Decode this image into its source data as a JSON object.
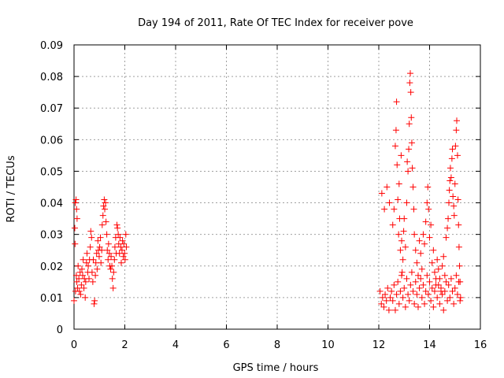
{
  "chart_data": {
    "type": "scatter",
    "title": "Day 194 of 2011, Rate Of TEC Index for receiver pove",
    "xlabel": "GPS time / hours",
    "ylabel": "ROTI / TECUs",
    "xlim": [
      0,
      16
    ],
    "ylim": [
      0,
      0.09
    ],
    "xticks": [
      0,
      2,
      4,
      6,
      8,
      10,
      12,
      14,
      16
    ],
    "yticks": [
      0,
      0.01,
      0.02,
      0.03,
      0.04,
      0.05,
      0.06,
      0.07,
      0.08,
      0.09
    ],
    "xtick_labels": [
      "0",
      "2",
      "4",
      "6",
      "8",
      "10",
      "12",
      "14",
      "16"
    ],
    "ytick_labels": [
      "0",
      "0.01",
      "0.02",
      "0.03",
      "0.04",
      "0.05",
      "0.06",
      "0.07",
      "0.08",
      "0.09"
    ],
    "grid": true,
    "marker": "+",
    "color": "#ff0000",
    "series": [
      {
        "name": "ROTI",
        "points": [
          [
            0.0,
            0.009
          ],
          [
            0.03,
            0.032
          ],
          [
            0.05,
            0.04
          ],
          [
            0.08,
            0.041
          ],
          [
            0.1,
            0.038
          ],
          [
            0.12,
            0.035
          ],
          [
            0.04,
            0.027
          ],
          [
            0.06,
            0.012
          ],
          [
            0.09,
            0.017
          ],
          [
            0.11,
            0.015
          ],
          [
            0.14,
            0.013
          ],
          [
            0.16,
            0.02
          ],
          [
            0.19,
            0.016
          ],
          [
            0.21,
            0.012
          ],
          [
            0.24,
            0.018
          ],
          [
            0.26,
            0.011
          ],
          [
            0.29,
            0.014
          ],
          [
            0.31,
            0.019
          ],
          [
            0.34,
            0.017
          ],
          [
            0.36,
            0.022
          ],
          [
            0.39,
            0.013
          ],
          [
            0.41,
            0.016
          ],
          [
            0.44,
            0.01
          ],
          [
            0.46,
            0.015
          ],
          [
            0.49,
            0.021
          ],
          [
            0.51,
            0.024
          ],
          [
            0.54,
            0.018
          ],
          [
            0.56,
            0.02
          ],
          [
            0.59,
            0.016
          ],
          [
            0.61,
            0.022
          ],
          [
            0.64,
            0.026
          ],
          [
            0.66,
            0.031
          ],
          [
            0.69,
            0.029
          ],
          [
            0.71,
            0.018
          ],
          [
            0.74,
            0.015
          ],
          [
            0.76,
            0.022
          ],
          [
            0.79,
            0.008
          ],
          [
            0.81,
            0.009
          ],
          [
            0.84,
            0.017
          ],
          [
            0.86,
            0.021
          ],
          [
            0.89,
            0.024
          ],
          [
            0.91,
            0.019
          ],
          [
            0.94,
            0.028
          ],
          [
            0.96,
            0.025
          ],
          [
            0.99,
            0.023
          ],
          [
            1.01,
            0.026
          ],
          [
            1.04,
            0.029
          ],
          [
            1.06,
            0.021
          ],
          [
            1.09,
            0.025
          ],
          [
            1.11,
            0.033
          ],
          [
            1.14,
            0.036
          ],
          [
            1.16,
            0.039
          ],
          [
            1.19,
            0.041
          ],
          [
            1.21,
            0.038
          ],
          [
            1.24,
            0.04
          ],
          [
            1.26,
            0.034
          ],
          [
            1.29,
            0.03
          ],
          [
            1.31,
            0.025
          ],
          [
            1.34,
            0.022
          ],
          [
            1.36,
            0.027
          ],
          [
            1.39,
            0.024
          ],
          [
            1.41,
            0.02
          ],
          [
            1.44,
            0.019
          ],
          [
            1.46,
            0.023
          ],
          [
            1.49,
            0.02
          ],
          [
            1.51,
            0.016
          ],
          [
            1.54,
            0.013
          ],
          [
            1.56,
            0.018
          ],
          [
            1.59,
            0.022
          ],
          [
            1.61,
            0.026
          ],
          [
            1.64,
            0.029
          ],
          [
            1.66,
            0.024
          ],
          [
            1.69,
            0.033
          ],
          [
            1.71,
            0.032
          ],
          [
            1.74,
            0.03
          ],
          [
            1.76,
            0.027
          ],
          [
            1.79,
            0.024
          ],
          [
            1.81,
            0.029
          ],
          [
            1.84,
            0.026
          ],
          [
            1.86,
            0.021
          ],
          [
            1.89,
            0.025
          ],
          [
            1.91,
            0.028
          ],
          [
            1.94,
            0.023
          ],
          [
            1.96,
            0.027
          ],
          [
            1.99,
            0.024
          ],
          [
            2.01,
            0.022
          ],
          [
            2.04,
            0.03
          ],
          [
            2.06,
            0.026
          ],
          [
            12.05,
            0.012
          ],
          [
            12.1,
            0.008
          ],
          [
            12.15,
            0.01
          ],
          [
            12.2,
            0.007
          ],
          [
            12.25,
            0.011
          ],
          [
            12.3,
            0.009
          ],
          [
            12.35,
            0.013
          ],
          [
            12.4,
            0.006
          ],
          [
            12.45,
            0.01
          ],
          [
            12.5,
            0.012
          ],
          [
            12.12,
            0.043
          ],
          [
            12.22,
            0.038
          ],
          [
            12.32,
            0.045
          ],
          [
            12.42,
            0.04
          ],
          [
            12.55,
            0.033
          ],
          [
            12.6,
            0.038
          ],
          [
            12.65,
            0.058
          ],
          [
            12.68,
            0.063
          ],
          [
            12.7,
            0.072
          ],
          [
            12.72,
            0.052
          ],
          [
            12.75,
            0.041
          ],
          [
            12.78,
            0.03
          ],
          [
            12.8,
            0.046
          ],
          [
            12.82,
            0.035
          ],
          [
            12.85,
            0.025
          ],
          [
            12.88,
            0.055
          ],
          [
            12.9,
            0.028
          ],
          [
            12.92,
            0.018
          ],
          [
            12.95,
            0.022
          ],
          [
            12.98,
            0.031
          ],
          [
            13.0,
            0.035
          ],
          [
            13.05,
            0.026
          ],
          [
            13.1,
            0.04
          ],
          [
            13.12,
            0.053
          ],
          [
            13.15,
            0.05
          ],
          [
            13.18,
            0.057
          ],
          [
            13.2,
            0.065
          ],
          [
            13.22,
            0.078
          ],
          [
            13.24,
            0.081
          ],
          [
            13.26,
            0.075
          ],
          [
            13.28,
            0.067
          ],
          [
            13.3,
            0.059
          ],
          [
            13.32,
            0.051
          ],
          [
            13.35,
            0.045
          ],
          [
            13.38,
            0.038
          ],
          [
            13.4,
            0.03
          ],
          [
            13.45,
            0.025
          ],
          [
            13.5,
            0.021
          ],
          [
            13.55,
            0.017
          ],
          [
            13.6,
            0.028
          ],
          [
            13.65,
            0.024
          ],
          [
            13.7,
            0.019
          ],
          [
            13.75,
            0.03
          ],
          [
            13.8,
            0.027
          ],
          [
            13.85,
            0.034
          ],
          [
            13.9,
            0.04
          ],
          [
            13.93,
            0.045
          ],
          [
            13.96,
            0.038
          ],
          [
            14.0,
            0.029
          ],
          [
            14.05,
            0.033
          ],
          [
            14.1,
            0.021
          ],
          [
            14.15,
            0.025
          ],
          [
            14.2,
            0.018
          ],
          [
            14.25,
            0.014
          ],
          [
            14.3,
            0.022
          ],
          [
            14.35,
            0.019
          ],
          [
            14.4,
            0.016
          ],
          [
            14.45,
            0.012
          ],
          [
            14.5,
            0.02
          ],
          [
            14.55,
            0.023
          ],
          [
            14.6,
            0.017
          ],
          [
            14.65,
            0.029
          ],
          [
            14.7,
            0.032
          ],
          [
            14.73,
            0.035
          ],
          [
            14.76,
            0.04
          ],
          [
            14.78,
            0.044
          ],
          [
            14.8,
            0.047
          ],
          [
            14.82,
            0.051
          ],
          [
            14.85,
            0.048
          ],
          [
            14.88,
            0.054
          ],
          [
            14.9,
            0.057
          ],
          [
            14.92,
            0.042
          ],
          [
            14.95,
            0.039
          ],
          [
            14.97,
            0.036
          ],
          [
            15.0,
            0.046
          ],
          [
            15.02,
            0.058
          ],
          [
            15.05,
            0.063
          ],
          [
            15.07,
            0.066
          ],
          [
            15.1,
            0.055
          ],
          [
            15.12,
            0.041
          ],
          [
            15.14,
            0.033
          ],
          [
            15.16,
            0.026
          ],
          [
            15.18,
            0.02
          ],
          [
            15.2,
            0.015
          ],
          [
            15.22,
            0.01
          ],
          [
            12.55,
            0.009
          ],
          [
            12.6,
            0.014
          ],
          [
            12.65,
            0.006
          ],
          [
            12.7,
            0.011
          ],
          [
            12.75,
            0.015
          ],
          [
            12.8,
            0.008
          ],
          [
            12.85,
            0.012
          ],
          [
            12.9,
            0.017
          ],
          [
            12.95,
            0.01
          ],
          [
            13.0,
            0.013
          ],
          [
            13.05,
            0.007
          ],
          [
            13.1,
            0.016
          ],
          [
            13.15,
            0.011
          ],
          [
            13.2,
            0.009
          ],
          [
            13.25,
            0.014
          ],
          [
            13.3,
            0.018
          ],
          [
            13.35,
            0.012
          ],
          [
            13.4,
            0.008
          ],
          [
            13.45,
            0.015
          ],
          [
            13.5,
            0.011
          ],
          [
            13.55,
            0.007
          ],
          [
            13.6,
            0.013
          ],
          [
            13.65,
            0.016
          ],
          [
            13.7,
            0.01
          ],
          [
            13.75,
            0.014
          ],
          [
            13.8,
            0.008
          ],
          [
            13.85,
            0.012
          ],
          [
            13.9,
            0.017
          ],
          [
            13.95,
            0.011
          ],
          [
            14.0,
            0.015
          ],
          [
            14.05,
            0.009
          ],
          [
            14.1,
            0.013
          ],
          [
            14.15,
            0.007
          ],
          [
            14.2,
            0.012
          ],
          [
            14.25,
            0.016
          ],
          [
            14.3,
            0.01
          ],
          [
            14.35,
            0.014
          ],
          [
            14.4,
            0.008
          ],
          [
            14.45,
            0.013
          ],
          [
            14.5,
            0.011
          ],
          [
            14.55,
            0.006
          ],
          [
            14.6,
            0.012
          ],
          [
            14.65,
            0.015
          ],
          [
            14.7,
            0.009
          ],
          [
            14.75,
            0.014
          ],
          [
            14.8,
            0.01
          ],
          [
            14.85,
            0.016
          ],
          [
            14.9,
            0.012
          ],
          [
            14.95,
            0.008
          ],
          [
            15.0,
            0.013
          ],
          [
            15.05,
            0.017
          ],
          [
            15.1,
            0.011
          ],
          [
            15.15,
            0.015
          ],
          [
            15.2,
            0.009
          ]
        ]
      }
    ]
  }
}
